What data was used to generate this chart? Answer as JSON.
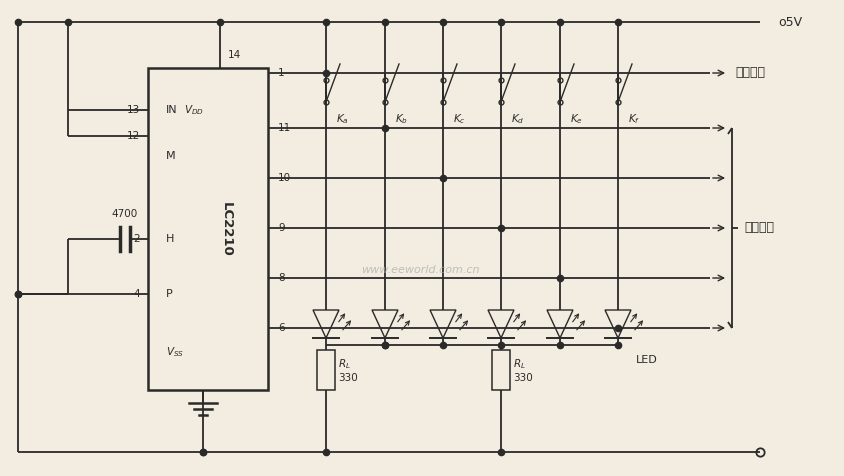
{
  "bg_color": "#f2ede0",
  "line_color": "#2a2a2a",
  "sw_labels": [
    "$K_a$",
    "$K_b$",
    "$K_c$",
    "$K_d$",
    "$K_e$",
    "$K_f$"
  ],
  "out_nums": [
    "1",
    "11",
    "10",
    "9",
    "8",
    "6"
  ],
  "right_label1": "自锁输出",
  "right_label2": "互锁输出",
  "voltage_label": "o5V",
  "led_label": "LED",
  "cap_label": "4700",
  "watermark": "www.eeworld.com.cn"
}
